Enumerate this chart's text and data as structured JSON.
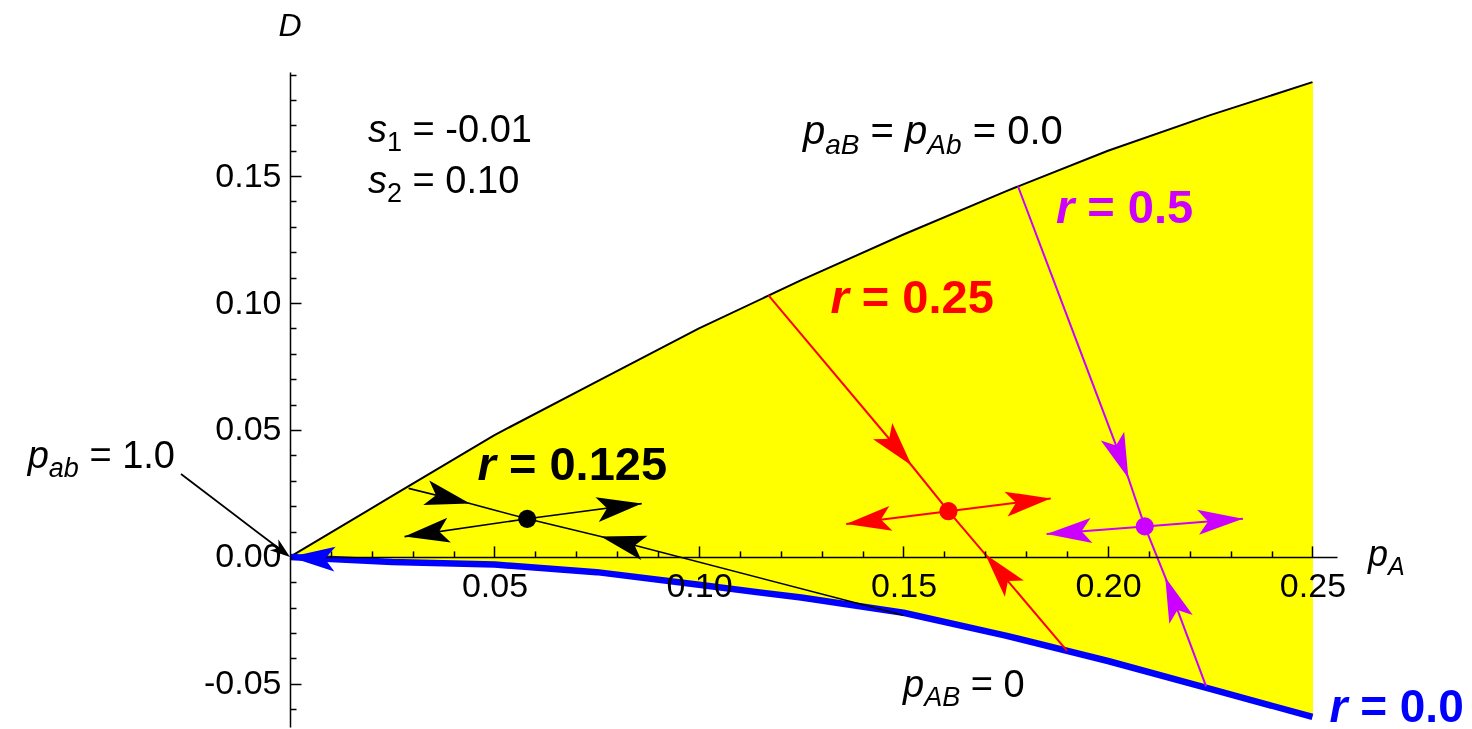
{
  "chart_data": {
    "type": "line",
    "xlabel": "p$_{A}$",
    "ylabel": "D",
    "xlim": [
      0,
      0.256
    ],
    "ylim": [
      -0.067,
      0.191
    ],
    "xticks": [
      {
        "value": 0.01,
        "label": null
      },
      {
        "value": 0.02,
        "label": null
      },
      {
        "value": 0.03,
        "label": null
      },
      {
        "value": 0.04,
        "label": null
      },
      0.05,
      {
        "value": 0.06,
        "label": null
      },
      {
        "value": 0.07,
        "label": null
      },
      {
        "value": 0.08,
        "label": null
      },
      {
        "value": 0.09,
        "label": null
      },
      {
        "value": 0.1,
        "label": "0.10"
      },
      {
        "value": 0.11,
        "label": null
      },
      {
        "value": 0.12,
        "label": null
      },
      {
        "value": 0.13,
        "label": null
      },
      {
        "value": 0.14,
        "label": null
      },
      0.15,
      {
        "value": 0.16,
        "label": null
      },
      {
        "value": 0.17,
        "label": null
      },
      {
        "value": 0.18,
        "label": null
      },
      {
        "value": 0.19,
        "label": null
      },
      {
        "value": 0.2,
        "label": "0.20"
      },
      {
        "value": 0.21,
        "label": null
      },
      {
        "value": 0.22,
        "label": null
      },
      {
        "value": 0.23,
        "label": null
      },
      {
        "value": 0.24,
        "label": null
      },
      0.25
    ],
    "yticks": [
      {
        "value": -0.06,
        "label": null
      },
      -0.05,
      {
        "value": -0.04,
        "label": null
      },
      {
        "value": -0.03,
        "label": null
      },
      {
        "value": -0.02,
        "label": null
      },
      {
        "value": -0.01,
        "label": null
      },
      {
        "value": 0,
        "label": "0.00"
      },
      {
        "value": 0.01,
        "label": null
      },
      {
        "value": 0.02,
        "label": null
      },
      {
        "value": 0.03,
        "label": null
      },
      {
        "value": 0.04,
        "label": null
      },
      0.05,
      {
        "value": 0.06,
        "label": null
      },
      {
        "value": 0.07,
        "label": null
      },
      {
        "value": 0.08,
        "label": null
      },
      {
        "value": 0.09,
        "label": null
      },
      {
        "value": 0.1,
        "label": "0.10"
      },
      {
        "value": 0.11,
        "label": null
      },
      {
        "value": 0.12,
        "label": null
      },
      {
        "value": 0.13,
        "label": null
      },
      {
        "value": 0.14,
        "label": null
      },
      0.15,
      {
        "value": 0.16,
        "label": null
      },
      {
        "value": 0.17,
        "label": null
      },
      {
        "value": 0.18,
        "label": null
      },
      {
        "value": 0.19,
        "label": null
      }
    ],
    "annotations": [
      "s$_{1}$ = -0.01",
      "s$_{2}$ = 0.10",
      "p$_{ab}$ = 1.0",
      "p$_{AB}$ = 0"
    ],
    "series": [
      {
        "name": "p$_{aB}$ = p$_{Ab}$ = 0.0",
        "color": "#000000",
        "x": [
          0,
          0.025,
          0.05,
          0.075,
          0.1,
          0.125,
          0.15,
          0.175,
          0.2,
          0.225,
          0.25
        ],
        "values": [
          0,
          0.024,
          0.048,
          0.069,
          0.09,
          0.109,
          0.127,
          0.144,
          0.16,
          0.174,
          0.187
        ]
      },
      {
        "name": "r = 0.0",
        "color": "#0000ff",
        "x": [
          0,
          0.025,
          0.05,
          0.075,
          0.1,
          0.125,
          0.15,
          0.175,
          0.2,
          0.225,
          0.25
        ],
        "values": [
          0,
          -0.002,
          -0.003,
          -0.006,
          -0.011,
          -0.016,
          -0.022,
          -0.031,
          -0.041,
          -0.052,
          -0.063
        ]
      },
      {
        "name": "r = 0.125",
        "color": "#000000",
        "x": [
          0.029,
          0.044,
          0.058,
          0.076,
          0.15
        ],
        "values": [
          0.027,
          0.021,
          0.015,
          0.008,
          -0.023
        ]
      },
      {
        "color": "#000000",
        "x": [
          0.028,
          0.058,
          0.086
        ],
        "values": [
          0.008,
          0.015,
          0.021
        ]
      },
      {
        "name": "r = 0.25",
        "color": "#ff0000",
        "x": [
          0.117,
          0.152,
          0.161,
          0.17,
          0.19
        ],
        "values": [
          0.103,
          0.036,
          0.018,
          0.001,
          -0.037
        ]
      },
      {
        "color": "#ff0000",
        "x": [
          0.136,
          0.161,
          0.186
        ],
        "values": [
          0.013,
          0.018,
          0.023
        ]
      },
      {
        "name": "r = 0.5",
        "color": "#cc00ff",
        "x": [
          0.178,
          0.205,
          0.209,
          0.214,
          0.224
        ],
        "values": [
          0.146,
          0.031,
          0.012,
          -0.008,
          -0.051
        ]
      },
      {
        "color": "#cc00ff",
        "x": [
          0.185,
          0.209,
          0.233
        ],
        "values": [
          0.009,
          0.012,
          0.015
        ]
      },
      {
        "type": "area",
        "color": "#ffff00",
        "x": [
          0,
          0.025,
          0.05,
          0.075,
          0.1,
          0.125
        ],
        "values": [
          0,
          0.024,
          0.048,
          0.069,
          0.09,
          0.109
        ]
      },
      {
        "type": "area",
        "color": "#ffff00",
        "x": [
          0.125,
          0.15,
          0.175,
          0.2,
          0.225,
          0.25
        ],
        "values": [
          0.109,
          0.127,
          0.144,
          0.16,
          0.174,
          0.187
        ]
      },
      {
        "type": "area",
        "color": "#ffff00",
        "x": [
          0.025,
          0.05,
          0.075,
          0.1,
          0.125,
          0.15,
          0.175,
          0.2,
          0.225,
          0.25
        ],
        "values": [
          -0.002,
          -0.003,
          -0.006,
          -0.011,
          -0.016,
          -0.022,
          -0.031,
          -0.041,
          -0.052,
          -0.063
        ]
      },
      {
        "type": "scatter",
        "marker": "circle",
        "x": [
          0.058,
          0.161,
          0.209
        ],
        "values": [
          0.015,
          0.018,
          0.012
        ],
        "colors": [
          "#000000",
          "#ff0000",
          "#cc00ff"
        ]
      }
    ]
  }
}
